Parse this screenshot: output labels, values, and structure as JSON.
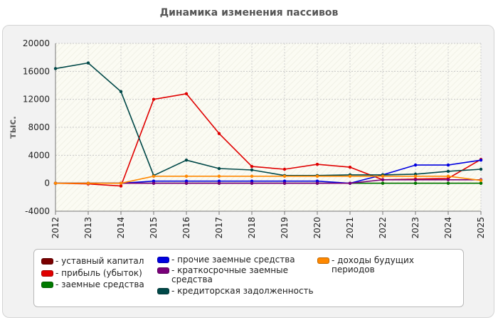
{
  "chart_data": {
    "type": "line",
    "title": "Динамика изменения пассивов",
    "ylabel": "тыс.",
    "xlabel": "",
    "ylim": [
      -4000,
      20000
    ],
    "yticks": [
      -4000,
      0,
      4000,
      8000,
      12000,
      16000,
      20000
    ],
    "categories": [
      "2012",
      "2013",
      "2014",
      "2015",
      "2016",
      "2017",
      "2018",
      "2019",
      "2020",
      "2021",
      "2022",
      "2023",
      "2024",
      "2025"
    ],
    "grid": true,
    "legend_position": "bottom",
    "series": [
      {
        "name": "уставный капитал",
        "color": "#7a0000",
        "values": [
          0,
          0,
          0,
          0,
          0,
          0,
          0,
          0,
          0,
          0,
          0,
          0,
          0,
          0
        ]
      },
      {
        "name": "прибыль (убыток)",
        "color": "#e00000",
        "values": [
          0,
          -100,
          -400,
          12000,
          12800,
          7100,
          2400,
          2000,
          2700,
          2300,
          500,
          600,
          700,
          3400
        ]
      },
      {
        "name": "заемные средства",
        "color": "#007a00",
        "values": [
          0,
          0,
          0,
          0,
          0,
          0,
          0,
          0,
          0,
          0,
          0,
          0,
          0,
          0
        ]
      },
      {
        "name": "прочие заемные средства",
        "color": "#0000e0",
        "values": [
          0,
          0,
          0,
          300,
          300,
          300,
          300,
          300,
          300,
          0,
          1200,
          2600,
          2600,
          3300
        ]
      },
      {
        "name": "краткосрочные заемные средства",
        "color": "#7a007a",
        "values": [
          0,
          0,
          0,
          0,
          0,
          0,
          0,
          0,
          0,
          0,
          500,
          500,
          500,
          500
        ]
      },
      {
        "name": "кредиторская задолженность",
        "color": "#004848",
        "values": [
          16400,
          17200,
          13100,
          1100,
          3300,
          2100,
          1900,
          1100,
          1100,
          1200,
          1200,
          1300,
          1700,
          2000
        ]
      },
      {
        "name": "доходы будущих периодов",
        "color": "#ff8800",
        "values": [
          0,
          0,
          0,
          1000,
          1000,
          1000,
          1000,
          1000,
          1000,
          1000,
          1000,
          1000,
          1000,
          400
        ]
      }
    ]
  }
}
